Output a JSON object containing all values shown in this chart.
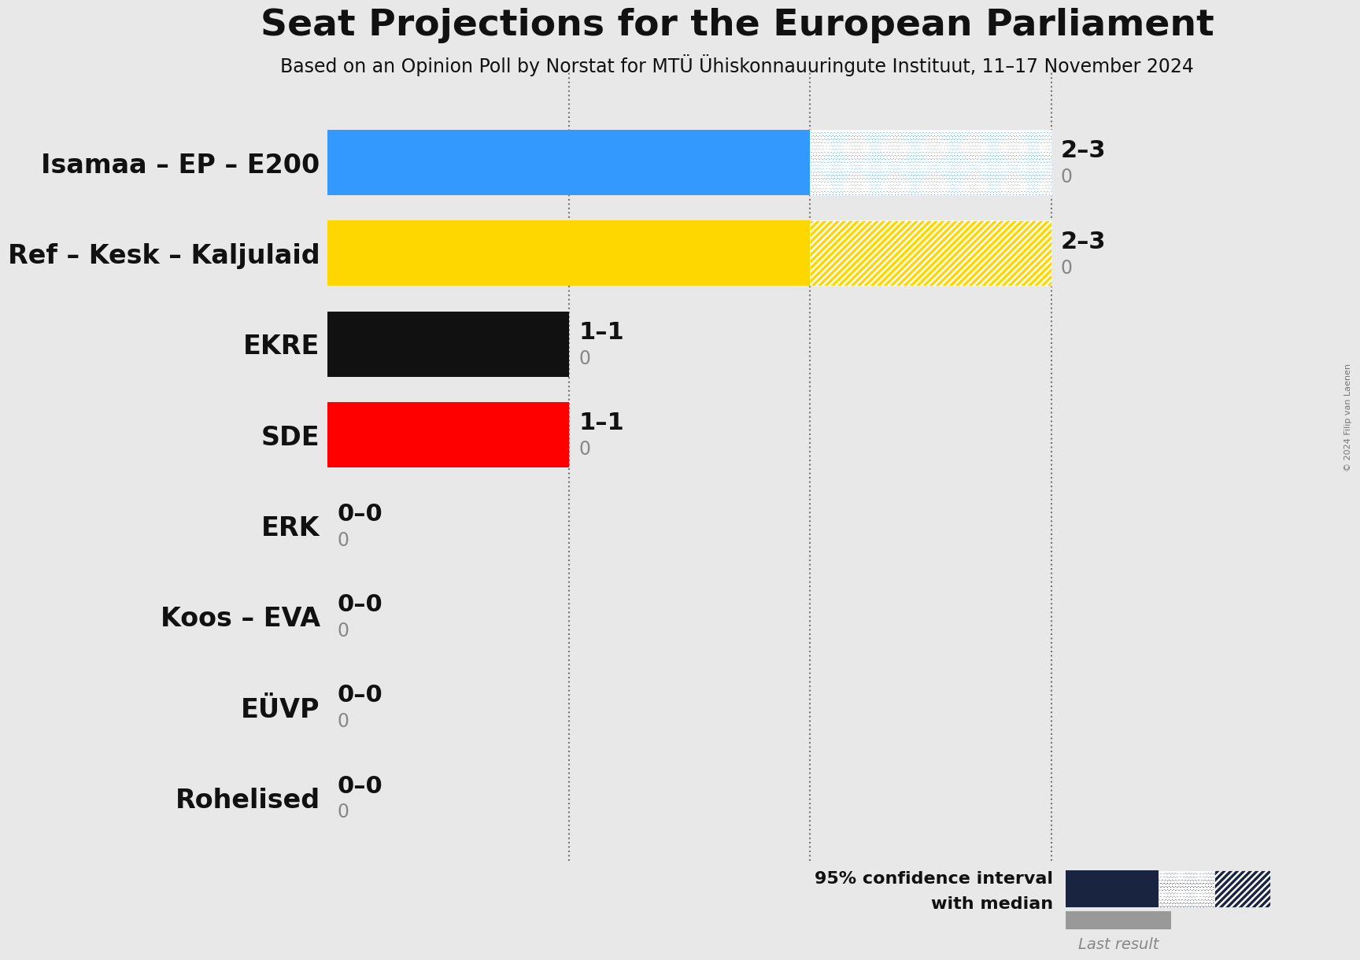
{
  "title": "Seat Projections for the European Parliament",
  "subtitle": "Based on an Opinion Poll by Norstat for MTÜ Ühiskonnauuringute Instituut, 11–17 November 2024",
  "copyright": "© 2024 Filip van Laenen",
  "parties": [
    "Isamaa – EP – E200",
    "Ref – Kesk – Kaljulaid",
    "EKRE",
    "SDE",
    "ERK",
    "Koos – EVA",
    "EÜVP",
    "Rohelised"
  ],
  "median": [
    2,
    2,
    1,
    1,
    0,
    0,
    0,
    0
  ],
  "low": [
    2,
    2,
    1,
    1,
    0,
    0,
    0,
    0
  ],
  "high": [
    3,
    3,
    1,
    1,
    0,
    0,
    0,
    0
  ],
  "last": [
    0,
    0,
    0,
    0,
    0,
    0,
    0,
    0
  ],
  "colors": [
    "#3399ff",
    "#FFD700",
    "#111111",
    "#FF0000",
    "#888888",
    "#888888",
    "#888888",
    "#888888"
  ],
  "label_text": [
    "2–3",
    "2–3",
    "1–1",
    "1–1",
    "0–0",
    "0–0",
    "0–0",
    "0–0"
  ],
  "background_color": "#e8e8e8",
  "bar_height": 0.72,
  "xlim": [
    0,
    3.6
  ],
  "dotted_lines": [
    1,
    2,
    3
  ],
  "legend_dark_color": "#192540",
  "last_result_color": "#999999"
}
